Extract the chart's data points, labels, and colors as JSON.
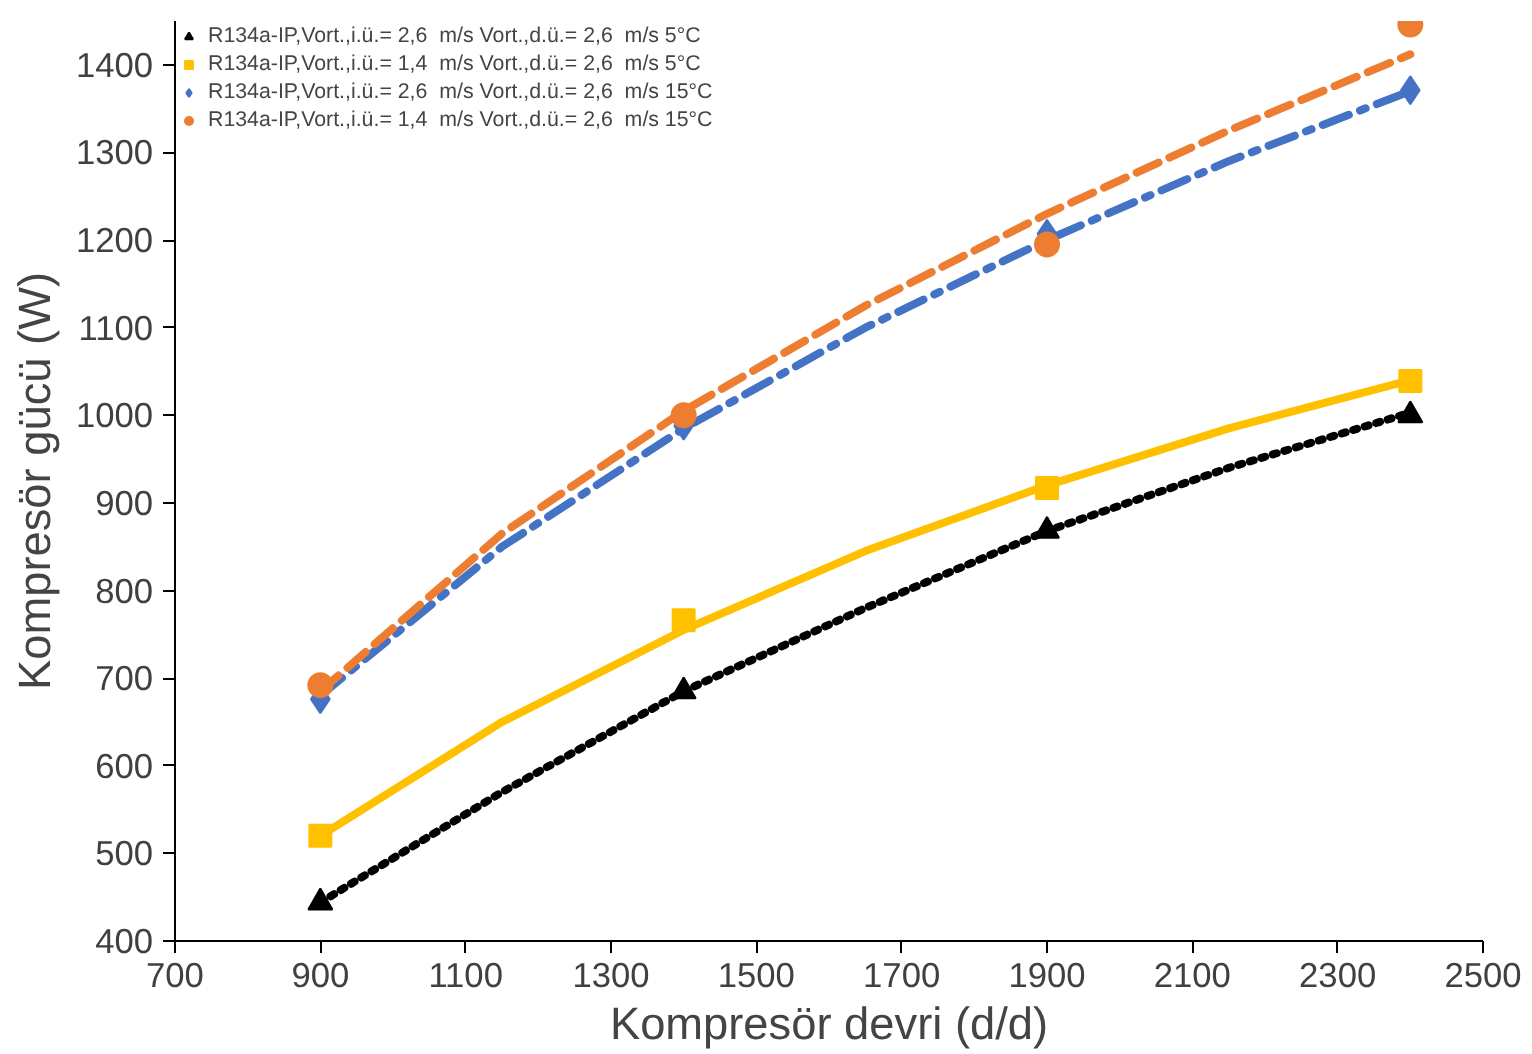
{
  "chart_data": {
    "type": "scatter",
    "xlabel": "Kompresör devri (d/d)",
    "ylabel": "Kompresör gücü (W)",
    "xlim": [
      700,
      2500
    ],
    "xticks": [
      700,
      900,
      1100,
      1300,
      1500,
      1700,
      1900,
      2100,
      2300,
      2500
    ],
    "ylim": [
      400,
      1450
    ],
    "yticks": [
      400,
      500,
      600,
      700,
      800,
      900,
      1000,
      1100,
      1200,
      1300,
      1400
    ],
    "grid": false,
    "legend": "top left",
    "series": [
      {
        "name": "R134a-IP,Vort.,i.ü.= 2,6  m/s Vort.,d.ü.= 2,6  m/s 5°C",
        "marker": "triangle",
        "color": "#000000",
        "x": [
          900,
          1400,
          1900,
          2400
        ],
        "values": [
          444,
          685,
          868,
          1000
        ]
      },
      {
        "name": "R134a-IP,Vort.,i.ü.= 1,4  m/s Vort.,d.ü.= 2,6  m/s 5°C",
        "marker": "square",
        "color": "#ffc000",
        "x": [
          900,
          1400,
          1900,
          2400
        ],
        "values": [
          520,
          766,
          917,
          1039
        ]
      },
      {
        "name": "R134a-IP,Vort.,i.ü.= 2,6  m/s Vort.,d.ü.= 2,6  m/s 15°C",
        "marker": "diamond",
        "color": "#4472c4",
        "x": [
          900,
          1400,
          1900,
          2400
        ],
        "values": [
          676,
          988,
          1207,
          1371
        ]
      },
      {
        "name": "R134a-IP,Vort.,i.ü.= 1,4  m/s Vort.,d.ü.= 2,6  m/s 15°C",
        "marker": "circle",
        "color": "#ed7d31",
        "x": [
          900,
          1400,
          1900,
          2400
        ],
        "values": [
          692,
          1000,
          1195,
          1446
        ]
      },
      {
        "type": "line",
        "line_style": "dotted",
        "color": "#000000",
        "x": [
          900,
          1150,
          1400,
          1650,
          1900,
          2150,
          2400
        ],
        "values": [
          444,
          570,
          685,
          780,
          868,
          940,
          1003
        ]
      },
      {
        "type": "line",
        "line_style": "solid",
        "color": "#ffc000",
        "x": [
          900,
          1150,
          1400,
          1650,
          1900,
          2150,
          2400
        ],
        "values": [
          520,
          650,
          755,
          845,
          920,
          985,
          1040
        ]
      },
      {
        "type": "line",
        "line_style": "dashdot",
        "color": "#4472c4",
        "x": [
          900,
          1150,
          1400,
          1650,
          1900,
          2150,
          2400
        ],
        "values": [
          680,
          850,
          985,
          1100,
          1200,
          1290,
          1370
        ]
      },
      {
        "type": "line",
        "line_style": "dashed",
        "color": "#ed7d31",
        "x": [
          900,
          1150,
          1400,
          1650,
          1900,
          2150,
          2400
        ],
        "values": [
          685,
          865,
          1005,
          1125,
          1230,
          1325,
          1412
        ]
      }
    ]
  }
}
